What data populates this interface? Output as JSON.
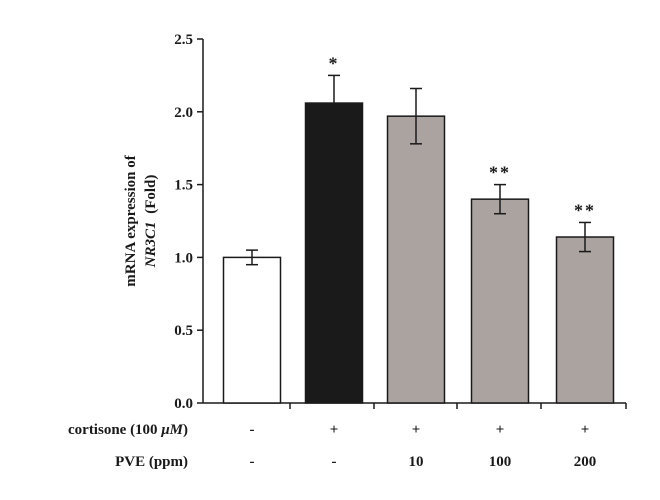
{
  "chart_data": {
    "type": "bar",
    "ylabel_line1": "mRNA expression of",
    "ylabel_gene": "NR3C1",
    "ylabel_unit": "(Fold)",
    "ylim": [
      0,
      2.5
    ],
    "yticks": [
      "0.0",
      "0.5",
      "1.0",
      "1.5",
      "2.0",
      "2.5"
    ],
    "ytick_values": [
      0,
      0.5,
      1.0,
      1.5,
      2.0,
      2.5
    ],
    "values": [
      1.0,
      2.06,
      1.97,
      1.4,
      1.14
    ],
    "errors": [
      0.05,
      0.19,
      0.19,
      0.1,
      0.1
    ],
    "colors": [
      "#ffffff",
      "#1a1a1a",
      "#aaa39f",
      "#aaa39f",
      "#aaa39f"
    ],
    "significance": [
      "",
      "*",
      "",
      "**",
      "**"
    ],
    "conditions": [
      {
        "label_prefix": "cortisone (100 ",
        "label_unit": "μM",
        "label_suffix": ")",
        "values": [
          "-",
          "+",
          "+",
          "+",
          "+"
        ]
      },
      {
        "label": "PVE (ppm)",
        "values": [
          "-",
          "-",
          "10",
          "100",
          "200"
        ]
      }
    ]
  }
}
